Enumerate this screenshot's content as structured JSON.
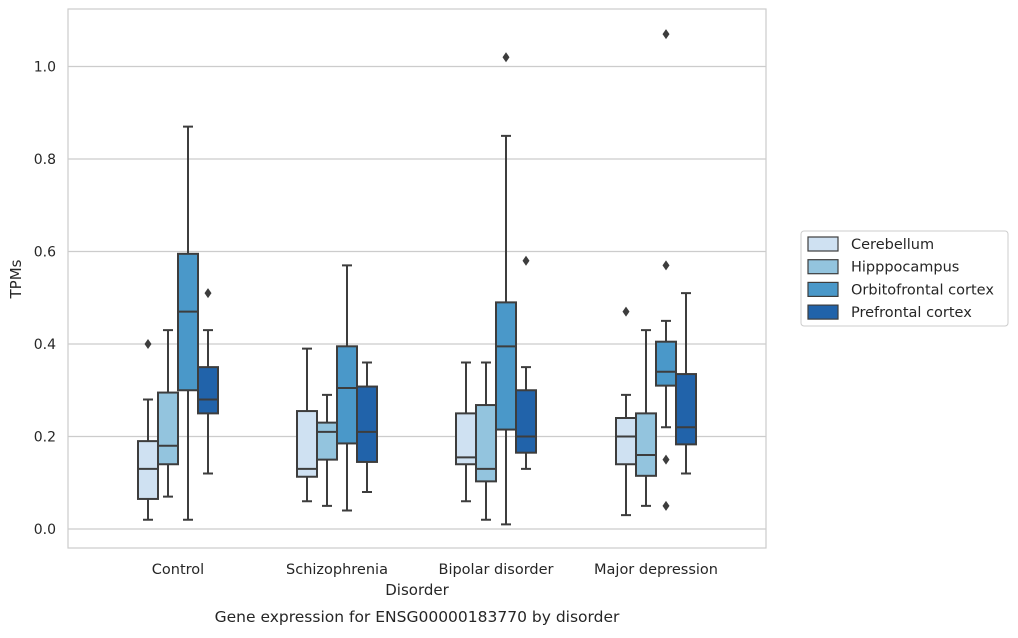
{
  "chart_data": {
    "type": "boxplot",
    "title": "Gene expression for ENSG00000183770 by disorder",
    "xlabel": "Disorder",
    "ylabel": "TPMs",
    "ylim": [
      -0.04,
      1.13
    ],
    "yticks": [
      0.0,
      0.2,
      0.4,
      0.6,
      0.8,
      1.0
    ],
    "ytick_labels": [
      "0.0",
      "0.2",
      "0.4",
      "0.6",
      "0.8",
      "1.0"
    ],
    "grid": "horizontal",
    "legend_placement": "right",
    "categories": [
      "Control",
      "Schizophrenia",
      "Bipolar disorder",
      "Major depression"
    ],
    "series": [
      {
        "name": "Cerebellum",
        "color": "#cfe1f2",
        "boxes": [
          {
            "whislo": 0.02,
            "q1": 0.065,
            "med": 0.13,
            "q3": 0.19,
            "whishi": 0.28,
            "fliers": [
              0.4
            ]
          },
          {
            "whislo": 0.06,
            "q1": 0.113,
            "med": 0.13,
            "q3": 0.255,
            "whishi": 0.39,
            "fliers": []
          },
          {
            "whislo": 0.06,
            "q1": 0.14,
            "med": 0.155,
            "q3": 0.25,
            "whishi": 0.36,
            "fliers": []
          },
          {
            "whislo": 0.03,
            "q1": 0.14,
            "med": 0.2,
            "q3": 0.24,
            "whishi": 0.29,
            "fliers": [
              0.47
            ]
          }
        ]
      },
      {
        "name": "Hipppocampus",
        "color": "#93c4de",
        "boxes": [
          {
            "whislo": 0.07,
            "q1": 0.14,
            "med": 0.18,
            "q3": 0.295,
            "whishi": 0.43,
            "fliers": []
          },
          {
            "whislo": 0.05,
            "q1": 0.15,
            "med": 0.21,
            "q3": 0.23,
            "whishi": 0.29,
            "fliers": []
          },
          {
            "whislo": 0.02,
            "q1": 0.103,
            "med": 0.13,
            "q3": 0.268,
            "whishi": 0.36,
            "fliers": []
          },
          {
            "whislo": 0.05,
            "q1": 0.115,
            "med": 0.16,
            "q3": 0.25,
            "whishi": 0.43,
            "fliers": []
          }
        ]
      },
      {
        "name": "Orbitofrontal cortex",
        "color": "#4a98c9",
        "boxes": [
          {
            "whislo": 0.02,
            "q1": 0.3,
            "med": 0.47,
            "q3": 0.595,
            "whishi": 0.87,
            "fliers": []
          },
          {
            "whislo": 0.04,
            "q1": 0.185,
            "med": 0.305,
            "q3": 0.395,
            "whishi": 0.57,
            "fliers": []
          },
          {
            "whislo": 0.01,
            "q1": 0.215,
            "med": 0.395,
            "q3": 0.49,
            "whishi": 0.85,
            "fliers": [
              1.02
            ]
          },
          {
            "whislo": 0.22,
            "q1": 0.31,
            "med": 0.34,
            "q3": 0.405,
            "whishi": 0.45,
            "fliers": [
              0.57,
              0.15,
              0.05,
              1.07
            ]
          }
        ]
      },
      {
        "name": "Prefrontal cortex",
        "color": "#2163aa",
        "boxes": [
          {
            "whislo": 0.12,
            "q1": 0.25,
            "med": 0.28,
            "q3": 0.35,
            "whishi": 0.43,
            "fliers": [
              0.51
            ]
          },
          {
            "whislo": 0.08,
            "q1": 0.145,
            "med": 0.21,
            "q3": 0.308,
            "whishi": 0.36,
            "fliers": []
          },
          {
            "whislo": 0.13,
            "q1": 0.165,
            "med": 0.2,
            "q3": 0.3,
            "whishi": 0.35,
            "fliers": [
              0.58
            ]
          },
          {
            "whislo": 0.12,
            "q1": 0.183,
            "med": 0.22,
            "q3": 0.335,
            "whishi": 0.51,
            "fliers": []
          }
        ]
      }
    ]
  }
}
